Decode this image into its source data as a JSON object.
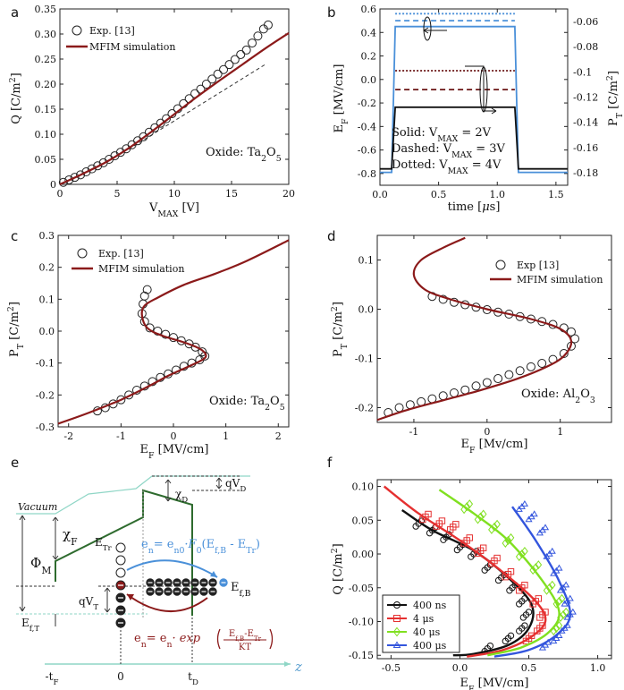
{
  "colors": {
    "sim": "#8b1a1a",
    "exp": "#222222",
    "blue": "#4a90d9",
    "lightblue": "#5aa0e6",
    "darkred": "#6b1515",
    "green": "#2e6b2e",
    "lightgreen": "#8fd6c6",
    "red": "#e53030",
    "lime": "#80e020",
    "navy": "#3355dd",
    "axis": "#222222"
  },
  "chart_data": [
    {
      "panel": "a",
      "type": "scatter+line",
      "xlabel": "V",
      "xlabel_sub": "MAX",
      "xlabel_unit": "[V]",
      "ylabel": "Q [C/m",
      "ylabel_sup": "2",
      "ylabel_end": "]",
      "xlim": [
        0,
        20
      ],
      "ylim": [
        0,
        0.35
      ],
      "xticks": [
        "0",
        "5",
        "10",
        "15",
        "20"
      ],
      "xtick_vals": [
        0,
        5,
        10,
        15,
        20
      ],
      "yticks": [
        "0",
        "0.05",
        "0.10",
        "0.15",
        "0.20",
        "0.25",
        "0.30",
        "0.35"
      ],
      "ytick_vals": [
        0,
        0.05,
        0.1,
        0.15,
        0.2,
        0.25,
        0.3,
        0.35
      ],
      "legend": [
        "Exp. [13]",
        "MFIM simulation"
      ],
      "annotation": "Oxide: Ta",
      "annotation_sub": "2",
      "annotation_end": "O",
      "annotation_sub2": "5",
      "series": [
        {
          "name": "MFIM simulation",
          "x": [
            0,
            2,
            4,
            6,
            8,
            10,
            12,
            14,
            16,
            18,
            20
          ],
          "y": [
            0,
            0.021,
            0.044,
            0.072,
            0.105,
            0.14,
            0.175,
            0.208,
            0.24,
            0.272,
            0.302
          ]
        },
        {
          "name": "linear guide",
          "x": [
            6,
            18
          ],
          "y": [
            0.07,
            0.24
          ]
        },
        {
          "name": "Exp. [13]",
          "x": [
            0.3,
            0.8,
            1.3,
            1.8,
            2.3,
            2.8,
            3.3,
            3.8,
            4.3,
            4.8,
            5.3,
            5.8,
            6.3,
            6.8,
            7.3,
            7.8,
            8.3,
            8.8,
            9.3,
            9.8,
            10.3,
            10.8,
            11.3,
            11.8,
            12.3,
            12.8,
            13.3,
            13.8,
            14.3,
            14.8,
            15.3,
            15.8,
            16.3,
            16.8,
            17.3,
            17.8,
            18.2
          ],
          "y": [
            0.004,
            0.009,
            0.014,
            0.019,
            0.025,
            0.031,
            0.037,
            0.043,
            0.05,
            0.057,
            0.064,
            0.071,
            0.079,
            0.087,
            0.095,
            0.104,
            0.113,
            0.122,
            0.131,
            0.141,
            0.151,
            0.161,
            0.171,
            0.181,
            0.19,
            0.2,
            0.21,
            0.22,
            0.229,
            0.239,
            0.249,
            0.259,
            0.268,
            0.282,
            0.296,
            0.31,
            0.318
          ]
        }
      ]
    },
    {
      "panel": "b",
      "type": "line",
      "xlabel": "time [",
      "xlabel_mu": "μ",
      "xlabel_end": "s]",
      "ylabel": "E",
      "ylabel_sub": "F",
      "ylabel_end": " [MV/cm]",
      "ylabel2": "P",
      "ylabel2_sub": "T",
      "ylabel2_end": " [C/m",
      "ylabel2_sup": "2",
      "ylabel2_end2": "]",
      "xlim": [
        0,
        1.6
      ],
      "ylim": [
        -0.9,
        0.6
      ],
      "y2lim": [
        -0.19,
        -0.05
      ],
      "xticks": [
        "0.0",
        "0.5",
        "1.0",
        "1.5"
      ],
      "xtick_vals": [
        0,
        0.5,
        1,
        1.5
      ],
      "yticks": [
        "0.6",
        "0.4",
        "0.2",
        "0.0",
        "-0.2",
        "-0.4",
        "-0.6",
        "-0.8"
      ],
      "ytick_vals": [
        0.6,
        0.4,
        0.2,
        0,
        -0.2,
        -0.4,
        -0.6,
        -0.8
      ],
      "y2ticks": [
        "-0.06",
        "-0.08",
        "-0.1",
        "-0.12",
        "-0.14",
        "-0.16",
        "-0.18"
      ],
      "y2tick_vals": [
        -0.06,
        -0.08,
        -0.1,
        -0.12,
        -0.14,
        -0.16,
        -0.18
      ],
      "text_lines": [
        {
          "pre": "Solid: V",
          "sub": "MAX",
          "post": " = 2V"
        },
        {
          "pre": "Dashed: V",
          "sub": "MAX",
          "post": " = 3V"
        },
        {
          "pre": "Dotted: V",
          "sub": "MAX",
          "post": " = 4V"
        }
      ],
      "series": [
        {
          "name": "E_F solid",
          "axis": "left",
          "x": [
            0,
            0.1,
            0.13,
            1.15,
            1.18,
            1.6
          ],
          "y": [
            -0.79,
            -0.79,
            0.45,
            0.45,
            -0.79,
            -0.79
          ]
        },
        {
          "name": "E_F dashed",
          "axis": "left",
          "x": [
            0.13,
            1.15
          ],
          "y": [
            0.5,
            0.5
          ]
        },
        {
          "name": "E_F dotted",
          "axis": "left",
          "x": [
            0.13,
            1.15
          ],
          "y": [
            0.56,
            0.56
          ]
        },
        {
          "name": "P_T solid",
          "axis": "right",
          "x": [
            0,
            0.1,
            0.13,
            1.15,
            1.18,
            1.6
          ],
          "y": [
            -0.177,
            -0.177,
            -0.128,
            -0.128,
            -0.177,
            -0.177
          ]
        },
        {
          "name": "P_T dashed",
          "axis": "right",
          "x": [
            0.13,
            1.15
          ],
          "y": [
            -0.114,
            -0.114
          ]
        },
        {
          "name": "P_T dotted",
          "axis": "right",
          "x": [
            0.13,
            1.15
          ],
          "y": [
            -0.099,
            -0.099
          ]
        }
      ]
    },
    {
      "panel": "c",
      "type": "scatter+line",
      "xlabel": "E",
      "xlabel_sub": "F",
      "xlabel_end": " [MV/cm]",
      "ylabel": "P",
      "ylabel_sub": "T",
      "ylabel_end": " [C/m",
      "ylabel_sup": "2",
      "ylabel_end2": "]",
      "xlim": [
        -2.2,
        2.2
      ],
      "ylim": [
        -0.3,
        0.3
      ],
      "xticks": [
        "-2",
        "-1",
        "0",
        "1",
        "2"
      ],
      "xtick_vals": [
        -2,
        -1,
        0,
        1,
        2
      ],
      "yticks": [
        "0.3",
        "0.2",
        "0.1",
        "0.0",
        "-0.1",
        "-0.2",
        "-0.3"
      ],
      "ytick_vals": [
        0.3,
        0.2,
        0.1,
        0,
        -0.1,
        -0.2,
        -0.3
      ],
      "legend": [
        "Exp. [13]",
        "MFIM simulation"
      ],
      "annotation": "Oxide: Ta",
      "annotation_sub": "2",
      "annotation_end": "O",
      "annotation_sub2": "5",
      "series": [
        {
          "name": "MFIM simulation",
          "x": [
            -2.2,
            -1.6,
            -1.0,
            -0.5,
            -0.1,
            0.3,
            0.55,
            0.62,
            0.5,
            0.2,
            -0.2,
            -0.5,
            -0.6,
            -0.55,
            -0.3,
            0.2,
            0.8,
            1.4,
            2.2
          ],
          "y": [
            -0.29,
            -0.255,
            -0.215,
            -0.175,
            -0.14,
            -0.11,
            -0.09,
            -0.075,
            -0.055,
            -0.035,
            -0.015,
            0.01,
            0.05,
            0.08,
            0.105,
            0.145,
            0.18,
            0.22,
            0.285
          ]
        },
        {
          "name": "Exp. [13]",
          "x": [
            -1.45,
            -1.3,
            -1.15,
            -1.0,
            -0.85,
            -0.7,
            -0.55,
            -0.4,
            -0.25,
            -0.1,
            0.05,
            0.2,
            0.35,
            0.5,
            0.6,
            0.55,
            0.42,
            0.3,
            0.15,
            0.0,
            -0.15,
            -0.3,
            -0.45,
            -0.55,
            -0.6,
            -0.58,
            -0.55,
            -0.5
          ],
          "y": [
            -0.25,
            -0.24,
            -0.228,
            -0.215,
            -0.2,
            -0.185,
            -0.172,
            -0.158,
            -0.145,
            -0.134,
            -0.122,
            -0.11,
            -0.1,
            -0.09,
            -0.078,
            -0.065,
            -0.05,
            -0.04,
            -0.03,
            -0.02,
            -0.01,
            0.0,
            0.01,
            0.03,
            0.055,
            0.085,
            0.11,
            0.13
          ]
        }
      ]
    },
    {
      "panel": "d",
      "type": "scatter+line",
      "xlabel": "E",
      "xlabel_sub": "F",
      "xlabel_end": " [Mv/cm]",
      "ylabel": "P",
      "ylabel_sub": "T",
      "ylabel_end": " [C/m",
      "ylabel_sup": "2",
      "ylabel_end2": "]",
      "xlim": [
        -1.5,
        1.7
      ],
      "ylim": [
        -0.23,
        0.15
      ],
      "xticks": [
        "-1",
        "0",
        "1"
      ],
      "xtick_vals": [
        -1,
        0,
        1
      ],
      "yticks": [
        "0.1",
        "0.0",
        "-0.1",
        "-0.2"
      ],
      "ytick_vals": [
        0.1,
        0,
        -0.1,
        -0.2
      ],
      "legend": [
        "Exp [13]",
        "MFIM simulation"
      ],
      "annotation": "Oxide: Al",
      "annotation_sub": "2",
      "annotation_end": "O",
      "annotation_sub2": "3",
      "series": [
        {
          "name": "MFIM simulation",
          "x": [
            -1.5,
            -1.1,
            -0.6,
            -0.1,
            0.4,
            0.8,
            1.05,
            1.15,
            1.0,
            0.6,
            0.0,
            -0.5,
            -0.85,
            -1.0,
            -0.9,
            -0.6,
            -0.3
          ],
          "y": [
            -0.225,
            -0.205,
            -0.185,
            -0.165,
            -0.142,
            -0.118,
            -0.095,
            -0.065,
            -0.04,
            -0.02,
            0.0,
            0.02,
            0.04,
            0.07,
            0.1,
            0.125,
            0.145
          ]
        },
        {
          "name": "Exp [13]",
          "x": [
            -1.35,
            -1.2,
            -1.05,
            -0.9,
            -0.75,
            -0.6,
            -0.45,
            -0.3,
            -0.15,
            0.0,
            0.15,
            0.3,
            0.45,
            0.6,
            0.75,
            0.9,
            1.05,
            1.15,
            1.2,
            1.15,
            1.05,
            0.9,
            0.75,
            0.6,
            0.45,
            0.3,
            0.15,
            0.0,
            -0.15,
            -0.3,
            -0.45,
            -0.6,
            -0.75
          ],
          "y": [
            -0.21,
            -0.2,
            -0.194,
            -0.188,
            -0.182,
            -0.176,
            -0.17,
            -0.164,
            -0.156,
            -0.149,
            -0.141,
            -0.133,
            -0.125,
            -0.117,
            -0.11,
            -0.102,
            -0.09,
            -0.075,
            -0.06,
            -0.046,
            -0.038,
            -0.031,
            -0.025,
            -0.02,
            -0.015,
            -0.01,
            -0.006,
            -0.001,
            0.004,
            0.009,
            0.014,
            0.02,
            0.026
          ]
        }
      ]
    },
    {
      "panel": "f",
      "type": "scatter+line",
      "xlabel": "E",
      "xlabel_sub": "F",
      "xlabel_end": " [MV/cm]",
      "ylabel": "Q [C/m",
      "ylabel_sup": "2",
      "ylabel_end": "]",
      "xlim": [
        -0.6,
        1.1
      ],
      "ylim": [
        -0.155,
        0.11
      ],
      "xticks": [
        "-0.5",
        "0.0",
        "0.5",
        "1.0"
      ],
      "xtick_vals": [
        -0.5,
        0,
        0.5,
        1
      ],
      "yticks": [
        "0.10",
        "0.05",
        "0.00",
        "-0.05",
        "-0.10",
        "-0.15"
      ],
      "ytick_vals": [
        0.1,
        0.05,
        0,
        -0.05,
        -0.1,
        -0.15
      ],
      "legend": [
        "400 ns",
        "4 μs",
        "40 μs",
        "400 μs"
      ],
      "series": [
        {
          "name": "400 ns",
          "color": "#111111",
          "marker": "circle",
          "line_x": [
            -0.42,
            -0.2,
            0.1,
            0.35,
            0.52,
            0.5,
            0.35,
            0.1,
            -0.05
          ],
          "line_y": [
            0.065,
            0.035,
            0.005,
            -0.035,
            -0.075,
            -0.11,
            -0.135,
            -0.148,
            -0.15
          ],
          "pts_x": [
            -0.3,
            -0.2,
            -0.1,
            0.0,
            0.1,
            0.2,
            0.3,
            0.38,
            0.45,
            0.48,
            0.45,
            0.35,
            0.2
          ],
          "pts_y": [
            0.045,
            0.035,
            0.025,
            0.01,
            0.0,
            -0.02,
            -0.035,
            -0.05,
            -0.07,
            -0.09,
            -0.11,
            -0.125,
            -0.14
          ]
        },
        {
          "name": "4 μs",
          "color": "#e53030",
          "marker": "square",
          "line_x": [
            -0.55,
            -0.3,
            0.0,
            0.3,
            0.55,
            0.62,
            0.5,
            0.3,
            0.05
          ],
          "line_y": [
            0.1,
            0.06,
            0.02,
            -0.025,
            -0.07,
            -0.1,
            -0.125,
            -0.143,
            -0.152
          ],
          "pts_x": [
            -0.25,
            -0.15,
            -0.05,
            0.05,
            0.15,
            0.25,
            0.35,
            0.45,
            0.55,
            0.6,
            0.58,
            0.5
          ],
          "pts_y": [
            0.055,
            0.045,
            0.04,
            0.02,
            0.005,
            -0.01,
            -0.03,
            -0.05,
            -0.07,
            -0.09,
            -0.11,
            -0.125
          ]
        },
        {
          "name": "40 μs",
          "color": "#80e020",
          "marker": "diamond",
          "line_x": [
            -0.15,
            0.1,
            0.35,
            0.6,
            0.72,
            0.65,
            0.45,
            0.2
          ],
          "line_y": [
            0.095,
            0.06,
            0.02,
            -0.04,
            -0.085,
            -0.115,
            -0.138,
            -0.15
          ],
          "pts_x": [
            0.05,
            0.15,
            0.25,
            0.35,
            0.45,
            0.55,
            0.65,
            0.72,
            0.75,
            0.7
          ],
          "pts_y": [
            0.07,
            0.055,
            0.04,
            0.02,
            0.0,
            -0.02,
            -0.05,
            -0.07,
            -0.09,
            -0.11
          ]
        },
        {
          "name": "400 μs",
          "color": "#3355dd",
          "marker": "triangle",
          "line_x": [
            0.38,
            0.55,
            0.72,
            0.8,
            0.7,
            0.5,
            0.25
          ],
          "line_y": [
            0.07,
            0.02,
            -0.04,
            -0.09,
            -0.12,
            -0.142,
            -0.152
          ],
          "pts_x": [
            0.45,
            0.52,
            0.6,
            0.65,
            0.7,
            0.75,
            0.78,
            0.8,
            0.76,
            0.7,
            0.62
          ],
          "pts_y": [
            0.07,
            0.055,
            0.035,
            0.0,
            -0.025,
            -0.05,
            -0.07,
            -0.09,
            -0.11,
            -0.125,
            -0.135
          ]
        }
      ]
    }
  ],
  "panel_labels": [
    "a",
    "b",
    "c",
    "d",
    "e",
    "f"
  ],
  "diagram_e": {
    "vacuum": "Vacuum",
    "chi": "χ",
    "chi_f_sub": "F",
    "chi_d_sub": "D",
    "phi": "Φ",
    "phi_sub": "M",
    "qvd": "qV",
    "qvd_sub": "D",
    "qvt": "qV",
    "qvt_sub": "T",
    "etr": "E",
    "etr_sub": "Tr",
    "efb": "E",
    "efb_sub": "f,B",
    "eft": "E",
    "eft_sub": "f,T",
    "tick_tf": "-t",
    "tick_tf_sub": "F",
    "tick_0": "0",
    "tick_td": "t",
    "tick_td_sub": "D",
    "axis_z": "z",
    "eq_blue_pre": "e",
    "eq_blue_pre_sub": "n",
    "eq_blue_eq": "= e",
    "eq_blue_eq_sub": "n0",
    "eq_blue_f": "·F",
    "eq_blue_f_sub": "0",
    "eq_blue_arg": "(E",
    "eq_blue_arg_sub": "f,B",
    "eq_blue_mid": " - E",
    "eq_blue_mid_sub": "Tr",
    "eq_blue_end": ")",
    "eq_red_pre": "e",
    "eq_red_pre_sub": "n",
    "eq_red_eq": "= e",
    "eq_red_eq_sub": "n",
    "eq_red_exp": "· exp",
    "eq_red_num": "E",
    "eq_red_num_sub": "f,B",
    "eq_red_num_mid": "-E",
    "eq_red_num_sub2": "Tr",
    "eq_red_den": "KT"
  }
}
